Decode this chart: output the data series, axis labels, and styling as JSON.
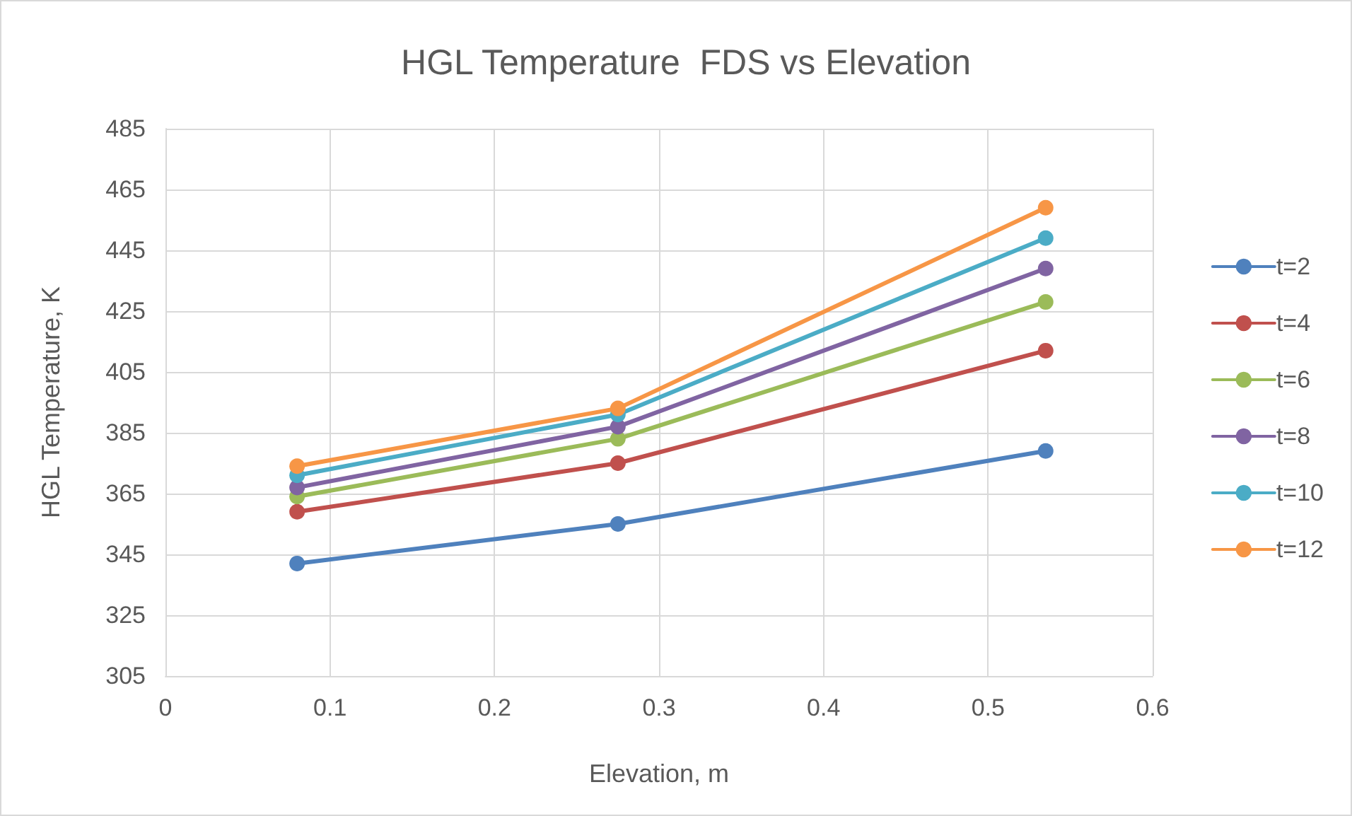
{
  "chart_data": {
    "type": "line",
    "title": "HGL Temperature  FDS vs Elevation",
    "xlabel": "Elevation, m",
    "ylabel": "HGL Temperature, K",
    "x": [
      0.08,
      0.275,
      0.535
    ],
    "series": [
      {
        "name": "t=2",
        "color": "#4f81bd",
        "values": [
          342,
          355,
          379
        ]
      },
      {
        "name": "t=4",
        "color": "#c0504d",
        "values": [
          359,
          375,
          412
        ]
      },
      {
        "name": "t=6",
        "color": "#9bbb59",
        "values": [
          364,
          383,
          428
        ]
      },
      {
        "name": "t=8",
        "color": "#8064a2",
        "values": [
          367,
          387,
          439
        ]
      },
      {
        "name": "t=10",
        "color": "#4bacc6",
        "values": [
          371,
          391,
          449
        ]
      },
      {
        "name": "t=12",
        "color": "#f79646",
        "values": [
          374,
          393,
          459
        ]
      }
    ],
    "xlim": [
      0,
      0.6
    ],
    "xticks": [
      0,
      0.1,
      0.2,
      0.3,
      0.4,
      0.5,
      0.6
    ],
    "ylim": [
      305,
      485
    ],
    "yticks": [
      305,
      325,
      345,
      365,
      385,
      405,
      425,
      445,
      465,
      485
    ],
    "grid": true,
    "legend": "right",
    "marker": "circle",
    "line_style": "solid"
  }
}
